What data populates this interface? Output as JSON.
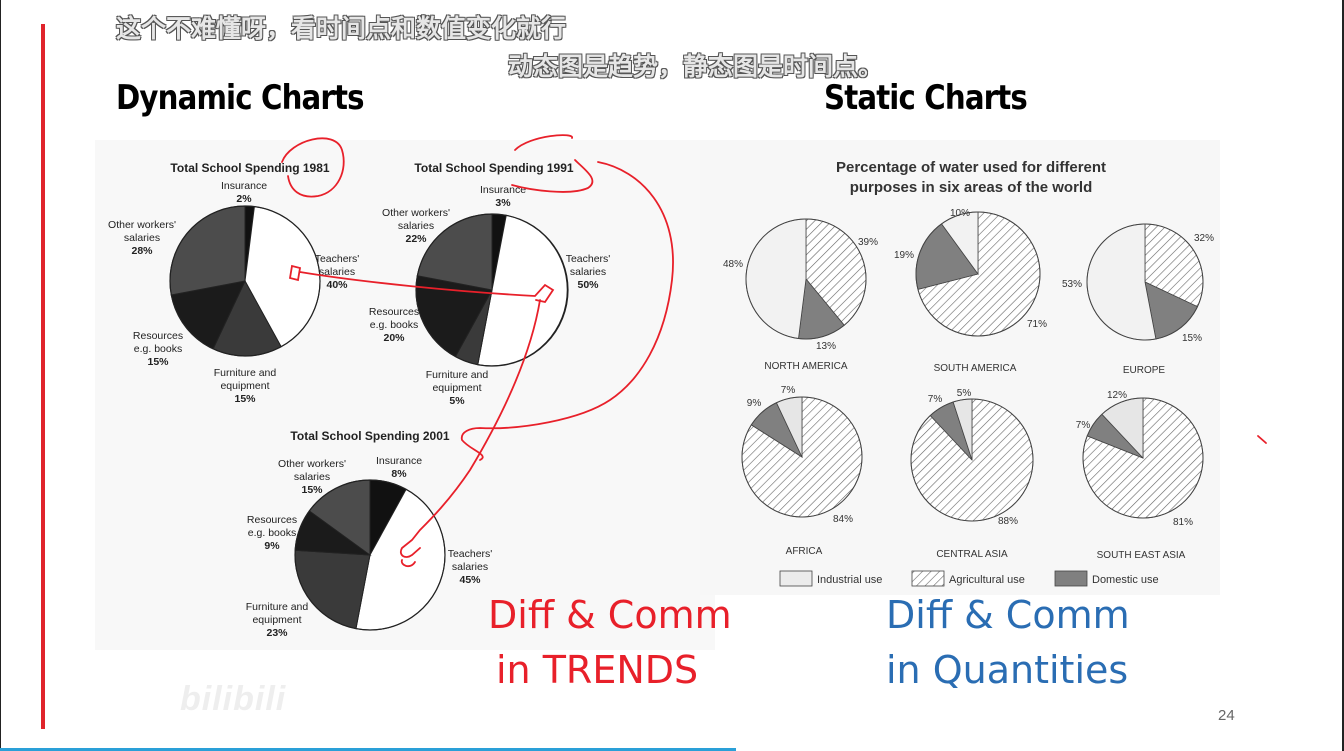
{
  "subtitles": {
    "line1": "这个不难懂呀，看时间点和数值变化就行",
    "line2": "动态图是趋势，静态图是时间点。"
  },
  "headings": {
    "dynamic": "Dynamic Charts",
    "static": "Static Charts"
  },
  "colors": {
    "accent_line": "#e0242b",
    "bottom_bar": "#2aa0d8",
    "note_red": "#e8202a",
    "note_blue": "#2a6db3"
  },
  "notes": {
    "dynamic_line1": "Diff & Comm",
    "dynamic_line2": "in TRENDS",
    "static_line1": "Diff & Comm",
    "static_line2": "in Quantities"
  },
  "page_number": "24",
  "watermark": "bilibili",
  "chart_data": [
    {
      "type": "pie",
      "title": "Total School Spending 1981",
      "slices": [
        {
          "name": "Insurance",
          "value": 2,
          "label": "2%"
        },
        {
          "name": "Teachers' salaries",
          "value": 40,
          "label": "40%"
        },
        {
          "name": "Furniture and equipment",
          "value": 15,
          "label": "15%"
        },
        {
          "name": "Resources e.g. books",
          "value": 15,
          "label": "15%"
        },
        {
          "name": "Other workers' salaries",
          "value": 28,
          "label": "28%"
        }
      ]
    },
    {
      "type": "pie",
      "title": "Total School Spending 1991",
      "slices": [
        {
          "name": "Insurance",
          "value": 3,
          "label": "3%"
        },
        {
          "name": "Teachers' salaries",
          "value": 50,
          "label": "50%"
        },
        {
          "name": "Furniture and equipment",
          "value": 5,
          "label": "5%"
        },
        {
          "name": "Resources e.g. books",
          "value": 20,
          "label": "20%"
        },
        {
          "name": "Other workers' salaries",
          "value": 22,
          "label": "22%"
        }
      ]
    },
    {
      "type": "pie",
      "title": "Total School Spending 2001",
      "slices": [
        {
          "name": "Insurance",
          "value": 8,
          "label": "8%"
        },
        {
          "name": "Teachers' salaries",
          "value": 45,
          "label": "45%"
        },
        {
          "name": "Furniture and equipment",
          "value": 23,
          "label": "23%"
        },
        {
          "name": "Resources e.g. books",
          "value": 9,
          "label": "9%"
        },
        {
          "name": "Other workers' salaries",
          "value": 15,
          "label": "15%"
        }
      ]
    },
    {
      "type": "pie",
      "title": "Percentage of water used for different purposes in six areas of the world",
      "legend": [
        "Industrial use",
        "Agricultural use",
        "Domestic use"
      ],
      "pies": [
        {
          "region": "NORTH AMERICA",
          "industrial": 48,
          "agricultural": 39,
          "domestic": 13
        },
        {
          "region": "SOUTH AMERICA",
          "industrial": 10,
          "agricultural": 71,
          "domestic": 19
        },
        {
          "region": "EUROPE",
          "industrial": 53,
          "agricultural": 32,
          "domestic": 15
        },
        {
          "region": "AFRICA",
          "industrial": 7,
          "agricultural": 84,
          "domestic": 9
        },
        {
          "region": "CENTRAL ASIA",
          "industrial": 5,
          "agricultural": 88,
          "domestic": 7
        },
        {
          "region": "SOUTH EAST ASIA",
          "industrial": 12,
          "agricultural": 81,
          "domestic": 7
        }
      ]
    }
  ]
}
